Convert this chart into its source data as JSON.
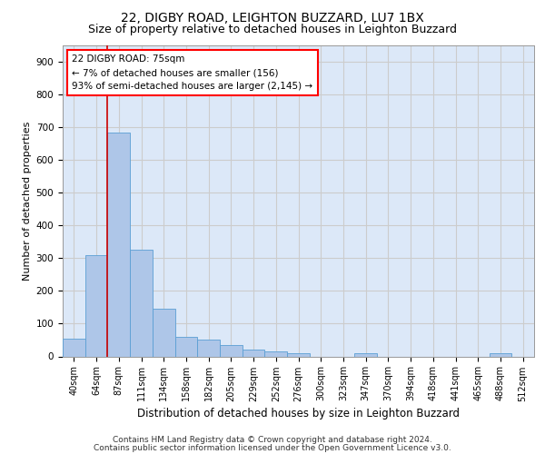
{
  "title1": "22, DIGBY ROAD, LEIGHTON BUZZARD, LU7 1BX",
  "title2": "Size of property relative to detached houses in Leighton Buzzard",
  "xlabel": "Distribution of detached houses by size in Leighton Buzzard",
  "ylabel": "Number of detached properties",
  "footer1": "Contains HM Land Registry data © Crown copyright and database right 2024.",
  "footer2": "Contains public sector information licensed under the Open Government Licence v3.0.",
  "bar_labels": [
    "40sqm",
    "64sqm",
    "87sqm",
    "111sqm",
    "134sqm",
    "158sqm",
    "182sqm",
    "205sqm",
    "229sqm",
    "252sqm",
    "276sqm",
    "300sqm",
    "323sqm",
    "347sqm",
    "370sqm",
    "394sqm",
    "418sqm",
    "441sqm",
    "465sqm",
    "488sqm",
    "512sqm"
  ],
  "bar_values": [
    55,
    310,
    685,
    325,
    145,
    60,
    50,
    35,
    20,
    15,
    10,
    0,
    0,
    10,
    0,
    0,
    0,
    0,
    0,
    10,
    0
  ],
  "bar_color": "#aec6e8",
  "bar_edge_color": "#5a9fd4",
  "annotation_box_lines": [
    "22 DIGBY ROAD: 75sqm",
    "← 7% of detached houses are smaller (156)",
    "93% of semi-detached houses are larger (2,145) →"
  ],
  "vline_color": "#cc0000",
  "vline_x": 1.48,
  "ylim": [
    0,
    950
  ],
  "yticks": [
    0,
    100,
    200,
    300,
    400,
    500,
    600,
    700,
    800,
    900
  ],
  "grid_color": "#cccccc",
  "bg_color": "#dce8f8",
  "title1_fontsize": 10,
  "title2_fontsize": 9,
  "xlabel_fontsize": 8.5,
  "ylabel_fontsize": 8,
  "tick_fontsize": 7.5,
  "footer_fontsize": 6.5,
  "ann_fontsize": 7.5
}
